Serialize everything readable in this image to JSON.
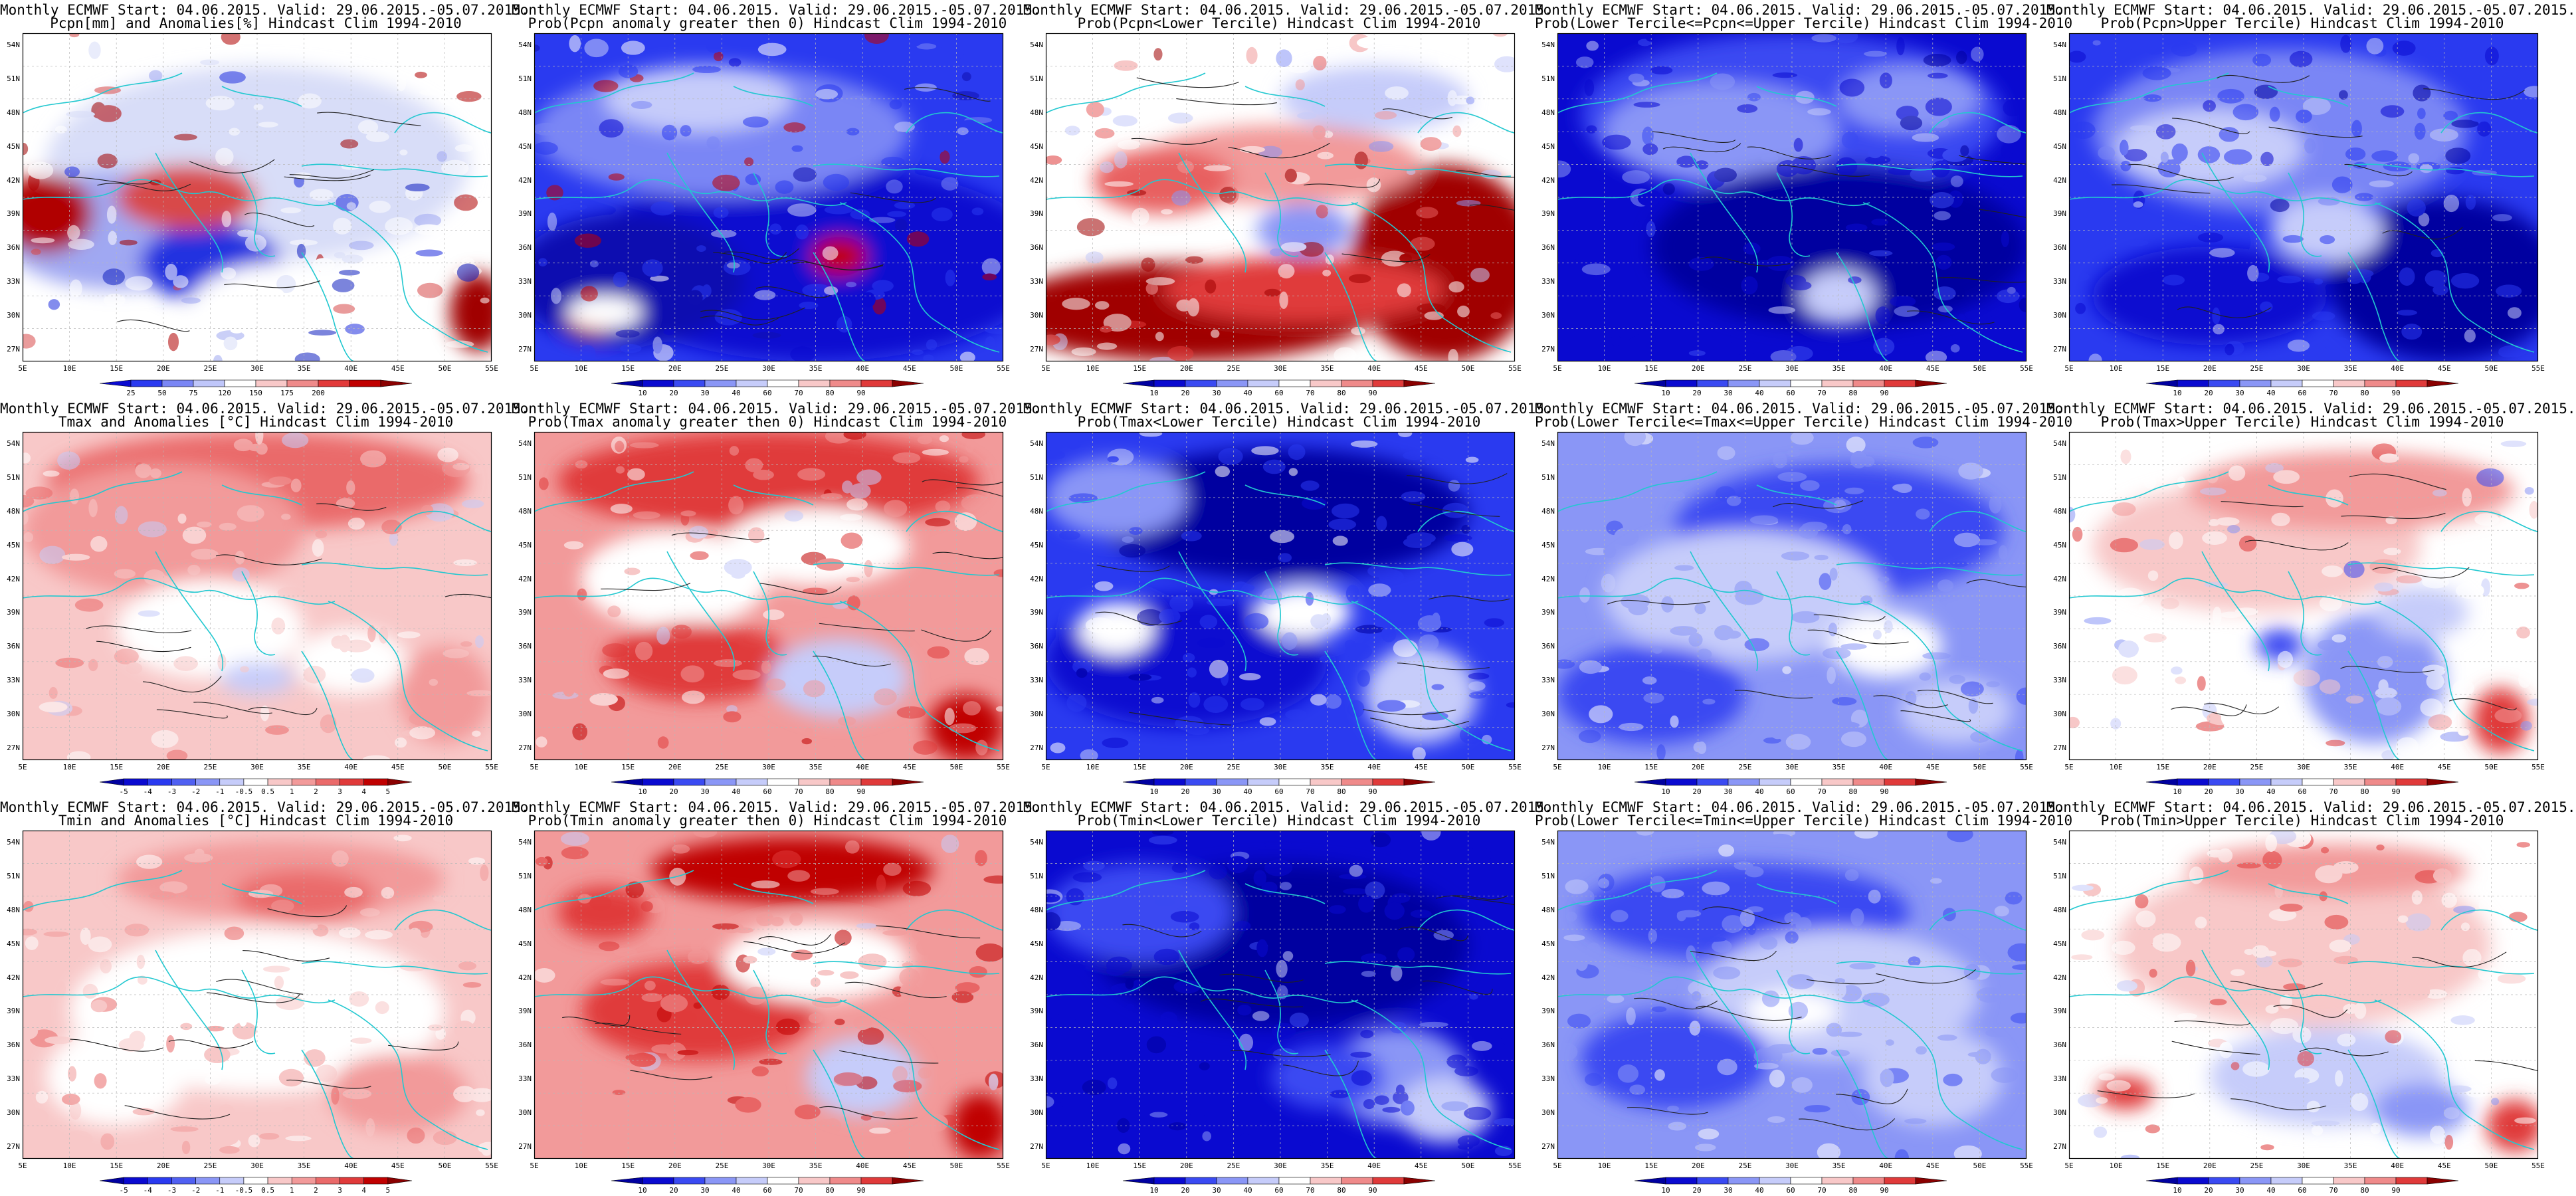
{
  "labels": {
    "lat": [
      "54N",
      "51N",
      "48N",
      "45N",
      "42N",
      "39N",
      "36N",
      "33N",
      "30N",
      "27N"
    ],
    "lon": [
      "5E",
      "10E",
      "15E",
      "20E",
      "25E",
      "30E",
      "35E",
      "40E",
      "45E",
      "50E",
      "55E"
    ]
  },
  "legends": {
    "pcpn": {
      "ticks": [
        "25",
        "50",
        "75",
        "120",
        "150",
        "175",
        "200"
      ],
      "colors": [
        "#0a0ad0",
        "#2a3af0",
        "#7a86f5",
        "#bfc6fa",
        "#ffffff",
        "#f8c8c8",
        "#ef8a8a",
        "#e23a3a",
        "#c00000",
        "#8a0000"
      ]
    },
    "temp": {
      "ticks": [
        "-5",
        "-4",
        "-3",
        "-2",
        "-1",
        "-0.5",
        "0.5",
        "1",
        "2",
        "3",
        "4",
        "5"
      ],
      "colors": [
        "#0000a0",
        "#0a0ad0",
        "#2a3af0",
        "#5060f2",
        "#8a96f6",
        "#c6ccfa",
        "#ffffff",
        "#f8c8c8",
        "#f29a9a",
        "#ea6a6a",
        "#e03a3a",
        "#c00000",
        "#8a0000"
      ]
    },
    "prob": {
      "ticks": [
        "10",
        "20",
        "30",
        "40",
        "60",
        "70",
        "80",
        "90"
      ],
      "colors": [
        "#0000a0",
        "#0a0ad0",
        "#3a4af2",
        "#8a96f6",
        "#c6ccfa",
        "#ffffff",
        "#f8c8c8",
        "#ef8a8a",
        "#e03a3a",
        "#8a0000"
      ]
    }
  },
  "panels": [
    {
      "line1": "Monthly ECMWF Start: 04.06.2015. Valid: 29.06.2015.-05.07.2015.",
      "line2": "Pcpn[mm] and Anomalies[%] Hindcast Clim 1994-2010",
      "legend": "pcpn",
      "base": "#ffffff",
      "blobs": [
        [
          "#d8ddf8",
          0.5,
          0.4,
          0.45,
          0.3
        ],
        [
          "#a0a8f2",
          0.2,
          0.6,
          0.25,
          0.18
        ],
        [
          "#b00000",
          0.05,
          0.55,
          0.1,
          0.12
        ],
        [
          "#2030e0",
          0.4,
          0.7,
          0.15,
          0.12
        ],
        [
          "#d84a4a",
          0.35,
          0.5,
          0.15,
          0.1
        ],
        [
          "#1020c0",
          0.6,
          0.88,
          0.1,
          0.1
        ],
        [
          "#a00000",
          0.97,
          0.85,
          0.06,
          0.12
        ],
        [
          "#ffffff",
          0.55,
          0.85,
          0.2,
          0.15
        ]
      ]
    },
    {
      "line1": "Monthly ECMWF Start: 04.06.2015. Valid: 29.06.2015.-05.07.2015.",
      "line2": "Prob(Pcpn anomaly greater then 0) Hindcast Clim 1994-2010",
      "legend": "prob",
      "base": "#2a3af0",
      "blobs": [
        [
          "#0a0ad0",
          0.6,
          0.7,
          0.5,
          0.3
        ],
        [
          "#7a86f5",
          0.4,
          0.3,
          0.4,
          0.2
        ],
        [
          "#c6ccfa",
          0.35,
          0.2,
          0.2,
          0.1
        ],
        [
          "#1010b0",
          0.2,
          0.75,
          0.25,
          0.2
        ],
        [
          "#c00000",
          0.12,
          0.88,
          0.05,
          0.05
        ],
        [
          "#c00000",
          0.65,
          0.68,
          0.06,
          0.06
        ],
        [
          "#ffffff",
          0.15,
          0.85,
          0.08,
          0.05
        ]
      ]
    },
    {
      "line1": "Monthly ECMWF Start: 04.06.2015. Valid: 29.06.2015.-05.07.2015.",
      "line2": "Prob(Pcpn<Lower Tercile) Hindcast Clim 1994-2010",
      "legend": "prob",
      "base": "#ffffff",
      "blobs": [
        [
          "#a00000",
          0.3,
          0.85,
          0.4,
          0.15
        ],
        [
          "#a00000",
          0.85,
          0.7,
          0.2,
          0.3
        ],
        [
          "#e03a3a",
          0.55,
          0.78,
          0.3,
          0.1
        ],
        [
          "#f29a9a",
          0.5,
          0.4,
          0.3,
          0.12
        ],
        [
          "#8a96f6",
          0.55,
          0.6,
          0.1,
          0.08
        ],
        [
          "#c6ccfa",
          0.7,
          0.2,
          0.2,
          0.1
        ],
        [
          "#e86060",
          0.25,
          0.45,
          0.15,
          0.1
        ]
      ]
    },
    {
      "line1": "Monthly ECMWF Start: 04.06.2015. Valid: 29.06.2015.-05.07.2015.",
      "line2": "Prob(Lower Tercile<=Pcpn<=Upper Tercile) Hindcast Clim 1994-2010",
      "legend": "prob",
      "base": "#0a0ad0",
      "blobs": [
        [
          "#3a4af2",
          0.5,
          0.25,
          0.45,
          0.25
        ],
        [
          "#8a96f6",
          0.35,
          0.3,
          0.25,
          0.15
        ],
        [
          "#0000a0",
          0.6,
          0.65,
          0.4,
          0.25
        ],
        [
          "#c6ccfa",
          0.6,
          0.8,
          0.08,
          0.08
        ],
        [
          "#8a96f6",
          0.75,
          0.2,
          0.15,
          0.1
        ]
      ]
    },
    {
      "line1": "Monthly ECMWF Start: 04.06.2015. Valid: 29.06.2015.-05.07.2015.",
      "line2": "Prob(Pcpn>Upper Tercile) Hindcast Clim 1994-2010",
      "legend": "prob",
      "base": "#2a3af0",
      "blobs": [
        [
          "#7a86f5",
          0.45,
          0.3,
          0.4,
          0.25
        ],
        [
          "#c6ccfa",
          0.3,
          0.35,
          0.2,
          0.12
        ],
        [
          "#0000a0",
          0.8,
          0.75,
          0.25,
          0.25
        ],
        [
          "#0a0ad0",
          0.3,
          0.8,
          0.25,
          0.15
        ],
        [
          "#c6ccfa",
          0.55,
          0.6,
          0.12,
          0.1
        ]
      ]
    },
    {
      "line1": "Monthly ECMWF Start: 04.06.2015. Valid: 29.06.2015.-05.07.2015.",
      "line2": "Tmax and Anomalies [°C] Hindcast Clim 1994-2010",
      "legend": "temp",
      "base": "#f8c8c8",
      "blobs": [
        [
          "#ea6a6a",
          0.5,
          0.15,
          0.45,
          0.15
        ],
        [
          "#f29a9a",
          0.3,
          0.3,
          0.3,
          0.2
        ],
        [
          "#ffffff",
          0.4,
          0.6,
          0.2,
          0.15
        ],
        [
          "#ffffff",
          0.7,
          0.7,
          0.12,
          0.1
        ],
        [
          "#c6ccfa",
          0.5,
          0.75,
          0.08,
          0.05
        ],
        [
          "#f29a9a",
          0.9,
          0.8,
          0.1,
          0.15
        ]
      ]
    },
    {
      "line1": "Monthly ECMWF Start: 04.06.2015. Valid: 29.06.2015.-05.07.2015.",
      "line2": "Prob(Tmax anomaly greater then 0) Hindcast Clim 1994-2010",
      "legend": "prob",
      "base": "#f29a9a",
      "blobs": [
        [
          "#e03a3a",
          0.5,
          0.15,
          0.45,
          0.15
        ],
        [
          "#ffffff",
          0.3,
          0.45,
          0.2,
          0.15
        ],
        [
          "#e03a3a",
          0.35,
          0.7,
          0.2,
          0.12
        ],
        [
          "#c6ccfa",
          0.65,
          0.75,
          0.15,
          0.12
        ],
        [
          "#ffffff",
          0.6,
          0.35,
          0.2,
          0.12
        ],
        [
          "#c00000",
          0.92,
          0.9,
          0.08,
          0.1
        ]
      ]
    },
    {
      "line1": "Monthly ECMWF Start: 04.06.2015. Valid: 29.06.2015.-05.07.2015.",
      "line2": "Prob(Tmax<Lower Tercile) Hindcast Clim 1994-2010",
      "legend": "prob",
      "base": "#2a3af0",
      "blobs": [
        [
          "#0000a0",
          0.5,
          0.25,
          0.4,
          0.2
        ],
        [
          "#0a0ad0",
          0.3,
          0.7,
          0.3,
          0.2
        ],
        [
          "#8a96f6",
          0.15,
          0.2,
          0.15,
          0.12
        ],
        [
          "#ffffff",
          0.55,
          0.55,
          0.1,
          0.08
        ],
        [
          "#c6ccfa",
          0.8,
          0.8,
          0.12,
          0.15
        ],
        [
          "#ffffff",
          0.15,
          0.6,
          0.08,
          0.08
        ]
      ]
    },
    {
      "line1": "Monthly ECMWF Start: 04.06.2015. Valid: 29.06.2015.-05.07.2015.",
      "line2": "Prob(Lower Tercile<=Tmax<=Upper Tercile) Hindcast Clim 1994-2010",
      "legend": "prob",
      "base": "#8a96f6",
      "blobs": [
        [
          "#3a4af2",
          0.6,
          0.3,
          0.35,
          0.2
        ],
        [
          "#c6ccfa",
          0.4,
          0.5,
          0.3,
          0.2
        ],
        [
          "#3a4af2",
          0.2,
          0.8,
          0.2,
          0.15
        ],
        [
          "#ffffff",
          0.7,
          0.65,
          0.12,
          0.1
        ],
        [
          "#c6ccfa",
          0.85,
          0.85,
          0.12,
          0.1
        ]
      ]
    },
    {
      "line1": "Monthly ECMWF Start: 04.06.2015. Valid: 29.06.2015.-05.07.2015.",
      "line2": "Prob(Tmax>Upper Tercile) Hindcast Clim 1994-2010",
      "legend": "prob",
      "base": "#ffffff",
      "blobs": [
        [
          "#f8c8c8",
          0.4,
          0.35,
          0.35,
          0.2
        ],
        [
          "#f29a9a",
          0.6,
          0.18,
          0.35,
          0.12
        ],
        [
          "#8a96f6",
          0.65,
          0.75,
          0.15,
          0.2
        ],
        [
          "#3a4af2",
          0.45,
          0.65,
          0.05,
          0.05
        ],
        [
          "#e03a3a",
          0.92,
          0.88,
          0.06,
          0.1
        ],
        [
          "#c6ccfa",
          0.75,
          0.55,
          0.1,
          0.08
        ]
      ]
    },
    {
      "line1": "Monthly ECMWF Start: 04.06.2015. Valid: 29.06.2015.-05.07.2015.",
      "line2": "Tmin and Anomalies [°C] Hindcast Clim 1994-2010",
      "legend": "temp",
      "base": "#f8c8c8",
      "blobs": [
        [
          "#ffffff",
          0.5,
          0.55,
          0.4,
          0.25
        ],
        [
          "#f29a9a",
          0.55,
          0.15,
          0.35,
          0.12
        ],
        [
          "#ffffff",
          0.2,
          0.75,
          0.15,
          0.15
        ],
        [
          "#f29a9a",
          0.8,
          0.8,
          0.15,
          0.12
        ],
        [
          "#ea6a6a",
          0.6,
          0.2,
          0.15,
          0.08
        ]
      ]
    },
    {
      "line1": "Monthly ECMWF Start: 04.06.2015. Valid: 29.06.2015.-05.07.2015.",
      "line2": "Prob(Tmin anomaly greater then 0) Hindcast Clim 1994-2010",
      "legend": "prob",
      "base": "#f29a9a",
      "blobs": [
        [
          "#c00000",
          0.55,
          0.12,
          0.3,
          0.1
        ],
        [
          "#e03a3a",
          0.35,
          0.55,
          0.25,
          0.15
        ],
        [
          "#ffffff",
          0.6,
          0.4,
          0.2,
          0.12
        ],
        [
          "#c6ccfa",
          0.7,
          0.75,
          0.12,
          0.12
        ],
        [
          "#e03a3a",
          0.15,
          0.25,
          0.1,
          0.08
        ],
        [
          "#c00000",
          0.95,
          0.9,
          0.06,
          0.1
        ]
      ]
    },
    {
      "line1": "Monthly ECMWF Start: 04.06.2015. Valid: 29.06.2015.-05.07.2015.",
      "line2": "Prob(Tmin<Lower Tercile) Hindcast Clim 1994-2010",
      "legend": "prob",
      "base": "#0a0ad0",
      "blobs": [
        [
          "#0000a0",
          0.5,
          0.35,
          0.4,
          0.25
        ],
        [
          "#3a4af2",
          0.2,
          0.25,
          0.2,
          0.15
        ],
        [
          "#8a96f6",
          0.75,
          0.75,
          0.15,
          0.15
        ],
        [
          "#c6ccfa",
          0.85,
          0.85,
          0.1,
          0.1
        ],
        [
          "#3a4af2",
          0.6,
          0.75,
          0.12,
          0.1
        ]
      ]
    },
    {
      "line1": "Monthly ECMWF Start: 04.06.2015. Valid: 29.06.2015.-05.07.2015.",
      "line2": "Prob(Lower Tercile<=Tmin<=Upper Tercile) Hindcast Clim 1994-2010",
      "legend": "prob",
      "base": "#8a96f6",
      "blobs": [
        [
          "#3a4af2",
          0.4,
          0.25,
          0.35,
          0.15
        ],
        [
          "#c6ccfa",
          0.6,
          0.5,
          0.3,
          0.2
        ],
        [
          "#3a4af2",
          0.25,
          0.7,
          0.2,
          0.15
        ],
        [
          "#ffffff",
          0.5,
          0.55,
          0.1,
          0.06
        ],
        [
          "#c6ccfa",
          0.8,
          0.75,
          0.15,
          0.15
        ]
      ]
    },
    {
      "line1": "Monthly ECMWF Start: 04.06.2015. Valid: 29.06.2015.-05.07.2015.",
      "line2": "Prob(Tmin>Upper Tercile) Hindcast Clim 1994-2010",
      "legend": "prob",
      "base": "#ffffff",
      "blobs": [
        [
          "#f8c8c8",
          0.5,
          0.35,
          0.4,
          0.25
        ],
        [
          "#f29a9a",
          0.55,
          0.12,
          0.3,
          0.08
        ],
        [
          "#c6ccfa",
          0.55,
          0.75,
          0.25,
          0.15
        ],
        [
          "#8a96f6",
          0.75,
          0.85,
          0.1,
          0.08
        ],
        [
          "#e03a3a",
          0.95,
          0.9,
          0.06,
          0.08
        ],
        [
          "#e03a3a",
          0.12,
          0.8,
          0.06,
          0.05
        ]
      ]
    }
  ]
}
